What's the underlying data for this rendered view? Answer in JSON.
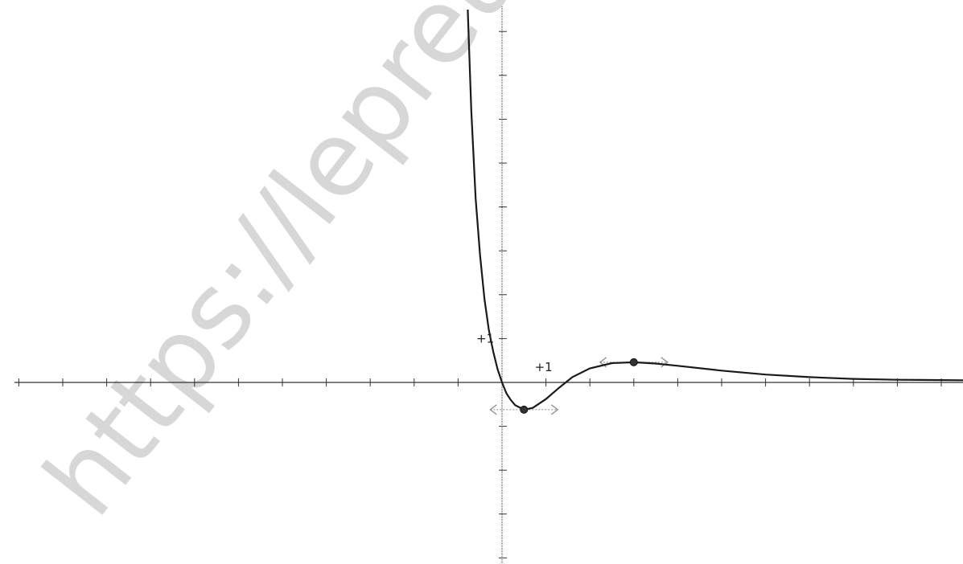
{
  "chart_data": {
    "type": "line",
    "title": "",
    "xlabel": "",
    "ylabel": "",
    "xlim": [
      -11,
      10.5
    ],
    "ylim": [
      -4,
      8.5
    ],
    "grid": false,
    "tick_step": 1,
    "tick_labels": {
      "x_plus_one": "+1",
      "y_plus_one": "+1"
    },
    "series": [
      {
        "x": [
          -0.78,
          -0.7,
          -0.6,
          -0.5,
          -0.4,
          -0.3,
          -0.2,
          -0.1,
          0,
          0.1,
          0.2,
          0.3,
          0.5,
          0.7,
          1.0,
          1.3,
          1.6,
          2.0,
          2.5,
          3.0,
          3.5,
          4.0,
          5.0,
          6.0,
          7.0,
          8.0,
          9.0,
          10.5
        ],
        "y": [
          8.5,
          6.2,
          4.2,
          2.9,
          1.9,
          1.2,
          0.7,
          0.3,
          0.0,
          -0.25,
          -0.4,
          -0.52,
          -0.62,
          -0.58,
          -0.38,
          -0.12,
          0.12,
          0.32,
          0.44,
          0.46,
          0.43,
          0.38,
          0.27,
          0.18,
          0.12,
          0.08,
          0.06,
          0.05
        ]
      }
    ],
    "annotations": [
      {
        "type": "point",
        "x": 0.5,
        "y": -0.62,
        "label": ""
      },
      {
        "type": "point",
        "x": 3.0,
        "y": 0.46,
        "label": ""
      }
    ],
    "watermark": "https://lepreuve",
    "colors": {
      "curve": "#1a1a1a",
      "axes": "#333333",
      "tangent": "#888888",
      "watermark": "#b8b8b8"
    }
  }
}
